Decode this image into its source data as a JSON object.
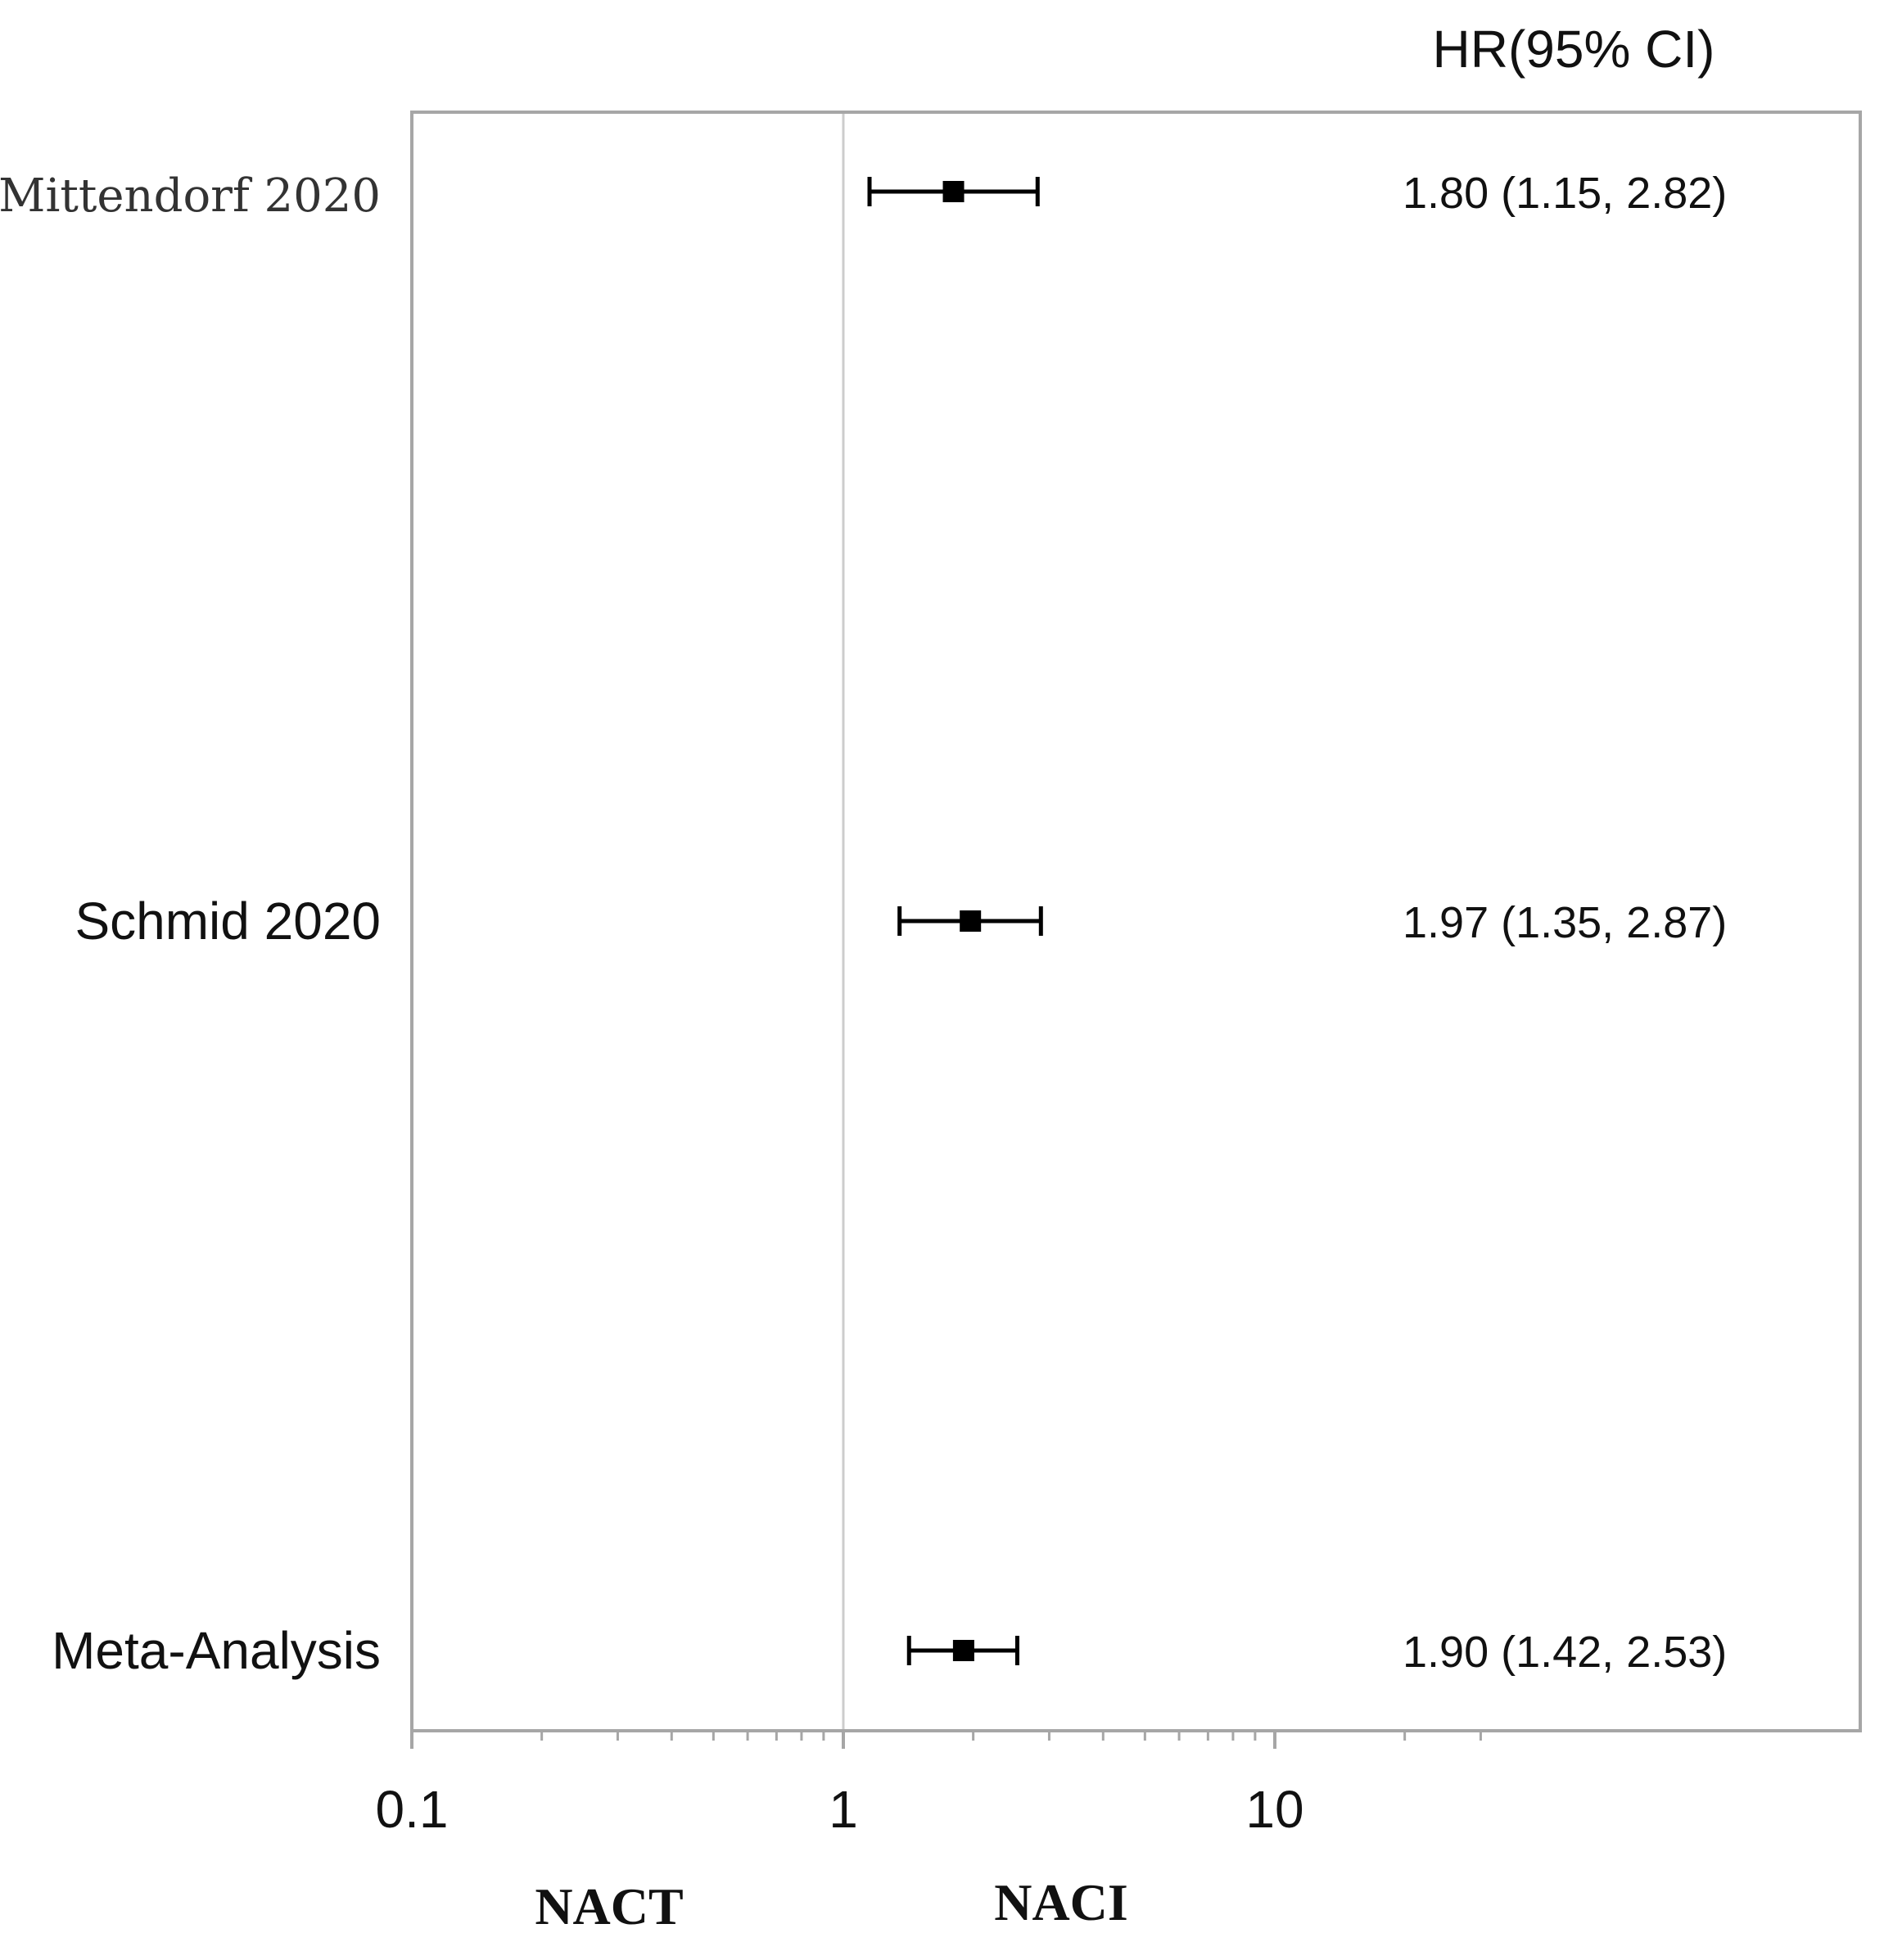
{
  "chart_data": {
    "type": "forest",
    "header": "HR(95% CI)",
    "x_scale": "log",
    "xlim": [
      0.1,
      40
    ],
    "x_ticks": [
      0.1,
      1,
      10
    ],
    "x_tick_labels": [
      "0.1",
      "1",
      "10"
    ],
    "reference_line": 1,
    "favors_left": "NACT",
    "favors_right": "NACI",
    "studies": [
      {
        "label": "Mittendorf 2020",
        "hr": 1.8,
        "lower": 1.15,
        "upper": 2.82,
        "ci_text": "1.80 (1.15, 2.82)"
      },
      {
        "label": "Schmid 2020",
        "hr": 1.97,
        "lower": 1.35,
        "upper": 2.87,
        "ci_text": "1.97 (1.35, 2.87)"
      },
      {
        "label": "Meta-Analysis",
        "hr": 1.9,
        "lower": 1.42,
        "upper": 2.53,
        "ci_text": "1.90 (1.42, 2.53)"
      }
    ],
    "colors": {
      "marker": "#000000",
      "frame": "#a6a6a6",
      "reference_line": "#cccccc",
      "axis": "#a6a6a6"
    }
  }
}
